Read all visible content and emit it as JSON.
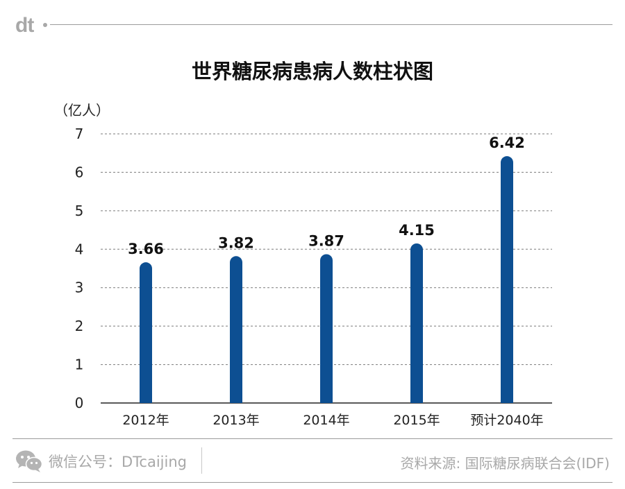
{
  "brand": {
    "logo_text": "dt"
  },
  "chart_data": {
    "type": "bar",
    "title": "世界糖尿病患病人数柱状图",
    "unit_label": "（亿人）",
    "categories": [
      "2012年",
      "2013年",
      "2014年",
      "2015年",
      "预计2040年"
    ],
    "values": [
      3.66,
      3.82,
      3.87,
      4.15,
      6.42
    ],
    "value_labels": [
      "3.66",
      "3.82",
      "3.87",
      "4.15",
      "6.42"
    ],
    "ylim": [
      0,
      7
    ],
    "yticks": [
      "0",
      "1",
      "2",
      "3",
      "4",
      "5",
      "6",
      "7"
    ],
    "grid": true,
    "bar_color": "#0d4f92"
  },
  "footer": {
    "wechat_icon": "wechat-icon",
    "wechat_text": "微信公号：DTcaijing",
    "source_text": "资料来源: 国际糖尿病联合会(IDF)"
  }
}
